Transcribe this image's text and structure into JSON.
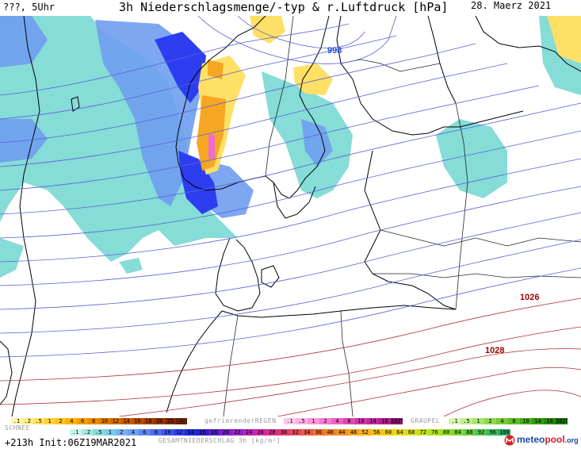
{
  "header": {
    "left_text": "???, 5Uhr",
    "title": "3h Niederschlagsmenge/-typ & r.Luftdruck [hPa]",
    "date": "28. Maerz 2021"
  },
  "map": {
    "isobar_labels": [
      {
        "text": "998",
        "color": "#1f4fcc"
      },
      {
        "text": "1026",
        "color": "#a00000"
      },
      {
        "text": "1028",
        "color": "#a00000"
      }
    ],
    "colors": {
      "isobar_low": "#5a5fd8",
      "isobar_high": "#b03030",
      "coast": "#000000",
      "snow_light": "#7fd6d1",
      "snow_mid": "#6f9ef0",
      "snow_heavy": "#2d3ef0",
      "rain_light": "#ffe066",
      "rain_mid": "#f5a623",
      "freezing_rain": "#f06bd0"
    }
  },
  "footer": {
    "init_text": "+213h Init:06Z19MAR2021",
    "schnee_title": "SCHNEE",
    "gefrierender_title": "gefrierenderREGEN",
    "graupel_title": "GRAUPEL",
    "gesamt_title": "GESAMTNIEDERSCHLAG 3h [kg/m²]",
    "logo_text_a": "meteo",
    "logo_text_b": "pool",
    "logo_text_c": ".org",
    "rain_legend": [
      {
        "label": ".1",
        "color": "#fff7b0"
      },
      {
        "label": ".2",
        "color": "#ffee88"
      },
      {
        "label": ".5",
        "color": "#ffe066"
      },
      {
        "label": "1",
        "color": "#ffd23d"
      },
      {
        "label": "2",
        "color": "#ffc21f"
      },
      {
        "label": "4",
        "color": "#ffb000"
      },
      {
        "label": "6",
        "color": "#f59e00"
      },
      {
        "label": "8",
        "color": "#eb8c00"
      },
      {
        "label": "10",
        "color": "#df7a00"
      },
      {
        "label": "12",
        "color": "#d46a00"
      },
      {
        "label": "14",
        "color": "#c85a00"
      },
      {
        "label": "16",
        "color": "#bb4c00"
      },
      {
        "label": "18",
        "color": "#a84000"
      },
      {
        "label": "20",
        "color": "#963600"
      },
      {
        "label": "25",
        "color": "#7c2c00"
      },
      {
        "label": "+",
        "color": "#602000"
      }
    ],
    "freezing_legend": [
      {
        "label": ".1",
        "color": "#ffc8ee"
      },
      {
        "label": ".5",
        "color": "#ffb0e6"
      },
      {
        "label": "1",
        "color": "#ff96dc"
      },
      {
        "label": "2",
        "color": "#f57bd0"
      },
      {
        "label": "4",
        "color": "#ea62c4"
      },
      {
        "label": "8",
        "color": "#dd4bb8"
      },
      {
        "label": "10",
        "color": "#cf38aa"
      },
      {
        "label": "14",
        "color": "#bf2a9c"
      },
      {
        "label": "16",
        "color": "#ad1f8c"
      },
      {
        "label": "2025+",
        "color": "#8f1474"
      }
    ],
    "graupel_legend": [
      {
        "label": ".1",
        "color": "#d8f5b0"
      },
      {
        "label": ".5",
        "color": "#c2ee8e"
      },
      {
        "label": "1",
        "color": "#a9e46c"
      },
      {
        "label": "2",
        "color": "#8fd84e"
      },
      {
        "label": "4",
        "color": "#75cb36"
      },
      {
        "label": "8",
        "color": "#5cbc24"
      },
      {
        "label": "10",
        "color": "#47ac16"
      },
      {
        "label": "14",
        "color": "#359a0c"
      },
      {
        "label": "16",
        "color": "#268806"
      },
      {
        "label": "2025+",
        "color": "#197502"
      }
    ],
    "snow_legend": [
      {
        "label": ".1",
        "color": "#c9f2ee"
      },
      {
        "label": ".2",
        "color": "#a7e8e3"
      },
      {
        "label": ".5",
        "color": "#86dcd6"
      },
      {
        "label": "1",
        "color": "#7fc8ee"
      },
      {
        "label": "2",
        "color": "#7ab0f0"
      },
      {
        "label": "4",
        "color": "#6f9ef0"
      },
      {
        "label": "6",
        "color": "#5e86ee"
      },
      {
        "label": "8",
        "color": "#4d6ded"
      },
      {
        "label": "10",
        "color": "#3c55ef"
      },
      {
        "label": "12",
        "color": "#2d3ef0"
      },
      {
        "label": "14",
        "color": "#2228d8"
      }
    ],
    "total_legend": [
      {
        "label": "16",
        "color": "#2e1fc8"
      },
      {
        "label": "18",
        "color": "#5020c8"
      },
      {
        "label": "20",
        "color": "#7a22c8"
      },
      {
        "label": "22",
        "color": "#9a24c4"
      },
      {
        "label": "24",
        "color": "#b826b8"
      },
      {
        "label": "26",
        "color": "#cc2aa4"
      },
      {
        "label": "28",
        "color": "#d8308c"
      },
      {
        "label": "30",
        "color": "#e03a72"
      },
      {
        "label": "32",
        "color": "#e64a5a"
      },
      {
        "label": "34",
        "color": "#ea5c46"
      },
      {
        "label": "36",
        "color": "#ee6e36"
      },
      {
        "label": "40",
        "color": "#f08028"
      },
      {
        "label": "44",
        "color": "#f2921e"
      },
      {
        "label": "48",
        "color": "#f4a418"
      },
      {
        "label": "52",
        "color": "#f4b414"
      },
      {
        "label": "56",
        "color": "#f2c412"
      },
      {
        "label": "60",
        "color": "#eed012"
      },
      {
        "label": "64",
        "color": "#e6da14"
      },
      {
        "label": "68",
        "color": "#d8e018"
      },
      {
        "label": "72",
        "color": "#c4e21c"
      },
      {
        "label": "76",
        "color": "#aee022"
      },
      {
        "label": "80",
        "color": "#96dc2a"
      },
      {
        "label": "84",
        "color": "#7cd634"
      },
      {
        "label": "88",
        "color": "#64ce40"
      },
      {
        "label": "92",
        "color": "#4ec44c"
      },
      {
        "label": "96",
        "color": "#3cb85a"
      },
      {
        "label": "100",
        "color": "#2eaa66"
      }
    ]
  }
}
